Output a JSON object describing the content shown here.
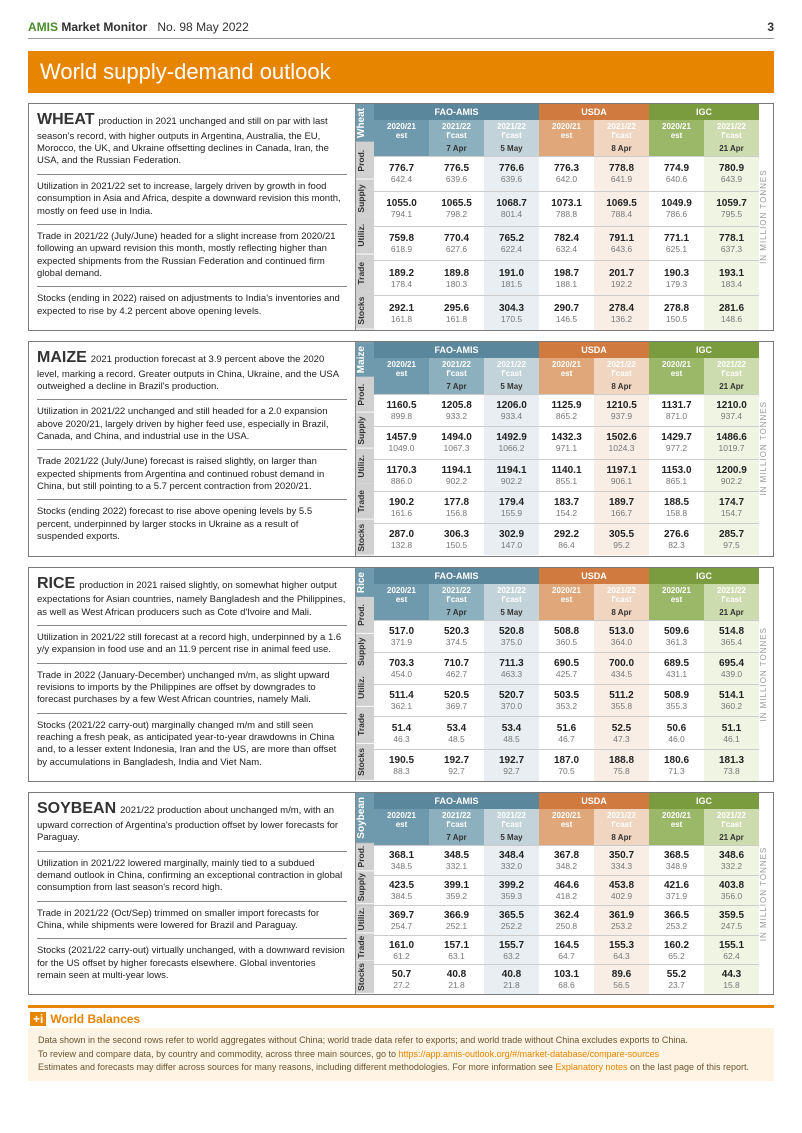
{
  "header": {
    "brand": "AMIS",
    "title": "Market Monitor",
    "issue": "No. 98 May 2022",
    "page": "3"
  },
  "band_title": "World supply-demand outlook",
  "unit_label": "IN MILLION TONNES",
  "sources": [
    {
      "name": "FAO-AMIS",
      "color": "#5b879d",
      "cols": [
        {
          "label": "2020/21 est",
          "sub": "",
          "bg": "#6f99ad"
        },
        {
          "label": "2021/22 f'cast",
          "sub": "7 Apr",
          "bg": "#8db0bf"
        },
        {
          "label": "2021/22 f'cast",
          "sub": "5 May",
          "bg": "#c2d3da"
        }
      ]
    },
    {
      "name": "USDA",
      "color": "#d07a3f",
      "cols": [
        {
          "label": "2020/21 est",
          "sub": "",
          "bg": "#e0a87a"
        },
        {
          "label": "2021/22 f'cast",
          "sub": "8 Apr",
          "bg": "#f0d6c0"
        }
      ]
    },
    {
      "name": "IGC",
      "color": "#7a9c3e",
      "cols": [
        {
          "label": "2020/21 est",
          "sub": "",
          "bg": "#9ab867"
        },
        {
          "label": "2021/22 f'cast",
          "sub": "21 Apr",
          "bg": "#cddcae"
        }
      ]
    }
  ],
  "row_categories": [
    "Prod.",
    "Supply",
    "Utiliz.",
    "Trade",
    "Stocks"
  ],
  "vtab_name_bg": {
    "wheat": "#8aa9b8",
    "maize": "#8aa9b8",
    "rice": "#8aa9b8",
    "soybean": "#8aa9b8"
  },
  "vtab_cat_bg": "#d0d0d0",
  "commodities": [
    {
      "key": "wheat",
      "name": "Wheat",
      "title": "WHEAT",
      "paras": [
        "production in 2021 unchanged and still on par with last season's record, with higher outputs in Argentina, Australia, the EU, Morocco, the UK, and Ukraine offsetting declines in Canada, Iran, the USA, and the Russian Federation.",
        "Utilization in 2021/22 set to increase, largely driven by growth in food consumption in Asia and Africa, despite a downward revision this month, mostly on feed use in India.",
        "Trade in 2021/22 (July/June) headed for a slight increase from 2020/21 following an upward revision this month, mostly reflecting higher than expected shipments from the Russian Federation and continued firm global demand.",
        "Stocks (ending in 2022) raised on adjustments to India's inventories and expected to rise by 4.2 percent above opening levels."
      ],
      "rows": [
        [
          [
            "776.7",
            "642.4"
          ],
          [
            "776.5",
            "639.6"
          ],
          [
            "776.6",
            "639.6"
          ],
          [
            "776.3",
            "642.0"
          ],
          [
            "778.8",
            "641.9"
          ],
          [
            "774.9",
            "640.6"
          ],
          [
            "780.9",
            "643.9"
          ]
        ],
        [
          [
            "1055.0",
            "794.1"
          ],
          [
            "1065.5",
            "798.2"
          ],
          [
            "1068.7",
            "801.4"
          ],
          [
            "1073.1",
            "788.8"
          ],
          [
            "1069.5",
            "788.4"
          ],
          [
            "1049.9",
            "786.6"
          ],
          [
            "1059.7",
            "795.5"
          ]
        ],
        [
          [
            "759.8",
            "618.9"
          ],
          [
            "770.4",
            "627.6"
          ],
          [
            "765.2",
            "622.4"
          ],
          [
            "782.4",
            "632.4"
          ],
          [
            "791.1",
            "643.6"
          ],
          [
            "771.1",
            "625.1"
          ],
          [
            "778.1",
            "637.3"
          ]
        ],
        [
          [
            "189.2",
            "178.4"
          ],
          [
            "189.8",
            "180.3"
          ],
          [
            "191.0",
            "181.5"
          ],
          [
            "198.7",
            "188.1"
          ],
          [
            "201.7",
            "192.2"
          ],
          [
            "190.3",
            "179.3"
          ],
          [
            "193.1",
            "183.4"
          ]
        ],
        [
          [
            "292.1",
            "161.8"
          ],
          [
            "295.6",
            "161.8"
          ],
          [
            "304.3",
            "170.5"
          ],
          [
            "290.7",
            "146.5"
          ],
          [
            "278.4",
            "136.2"
          ],
          [
            "278.8",
            "150.5"
          ],
          [
            "281.6",
            "148.6"
          ]
        ]
      ]
    },
    {
      "key": "maize",
      "name": "Maize",
      "title": "MAIZE",
      "paras": [
        "2021 production forecast at 3.9 percent above the 2020 level, marking a record. Greater outputs in China, Ukraine, and the USA outweighed a decline in Brazil's production.",
        "Utilization in 2021/22 unchanged and still headed for a 2.0 expansion above 2020/21, largely driven by higher feed use, especially in Brazil, Canada, and China, and industrial use in the USA.",
        "Trade 2021/22 (July/June) forecast is raised slightly, on larger than expected shipments from Argentina and continued robust demand in China, but still pointing to a 5.7 percent contraction from 2020/21.",
        "Stocks (ending 2022) forecast to rise above opening levels by 5.5 percent, underpinned by larger stocks in Ukraine as a result of suspended exports."
      ],
      "rows": [
        [
          [
            "1160.5",
            "899.8"
          ],
          [
            "1205.8",
            "933.2"
          ],
          [
            "1206.0",
            "933.4"
          ],
          [
            "1125.9",
            "865.2"
          ],
          [
            "1210.5",
            "937.9"
          ],
          [
            "1131.7",
            "871.0"
          ],
          [
            "1210.0",
            "937.4"
          ]
        ],
        [
          [
            "1457.9",
            "1049.0"
          ],
          [
            "1494.0",
            "1067.3"
          ],
          [
            "1492.9",
            "1066.2"
          ],
          [
            "1432.3",
            "971.1"
          ],
          [
            "1502.6",
            "1024.3"
          ],
          [
            "1429.7",
            "977.2"
          ],
          [
            "1486.6",
            "1019.7"
          ]
        ],
        [
          [
            "1170.3",
            "886.0"
          ],
          [
            "1194.1",
            "902.2"
          ],
          [
            "1194.1",
            "902.2"
          ],
          [
            "1140.1",
            "855.1"
          ],
          [
            "1197.1",
            "906.1"
          ],
          [
            "1153.0",
            "865.1"
          ],
          [
            "1200.9",
            "902.2"
          ]
        ],
        [
          [
            "190.2",
            "161.6"
          ],
          [
            "177.8",
            "156.8"
          ],
          [
            "179.4",
            "155.9"
          ],
          [
            "183.7",
            "154.2"
          ],
          [
            "189.7",
            "166.7"
          ],
          [
            "188.5",
            "158.8"
          ],
          [
            "174.7",
            "154.7"
          ]
        ],
        [
          [
            "287.0",
            "132.8"
          ],
          [
            "306.3",
            "150.5"
          ],
          [
            "302.9",
            "147.0"
          ],
          [
            "292.2",
            "86.4"
          ],
          [
            "305.5",
            "95.2"
          ],
          [
            "276.6",
            "82.3"
          ],
          [
            "285.7",
            "97.5"
          ]
        ]
      ]
    },
    {
      "key": "rice",
      "name": "Rice",
      "title": "RICE",
      "paras": [
        "production in 2021 raised slightly, on somewhat higher output expectations for Asian countries, namely Bangladesh and the Philippines, as well as West African producers such as Cote d'Ivoire and Mali.",
        "Utilization in 2021/22 still forecast at a record high, underpinned by a 1.6 y/y expansion in food use and an 11.9 percent rise in animal feed use.",
        "Trade in 2022 (January-December) unchanged m/m, as slight upward revisions to imports by the Philippines are offset by downgrades to forecast purchases by a few West African countries, namely Mali.",
        "Stocks (2021/22 carry-out) marginally changed m/m and still seen reaching a fresh peak, as anticipated year-to-year drawdowns in China and, to a lesser extent Indonesia, Iran and the US, are more than offset by accumulations in Bangladesh, India and Viet Nam."
      ],
      "rows": [
        [
          [
            "517.0",
            "371.9"
          ],
          [
            "520.3",
            "374.5"
          ],
          [
            "520.8",
            "375.0"
          ],
          [
            "508.8",
            "360.5"
          ],
          [
            "513.0",
            "364.0"
          ],
          [
            "509.6",
            "361.3"
          ],
          [
            "514.8",
            "365.4"
          ]
        ],
        [
          [
            "703.3",
            "454.0"
          ],
          [
            "710.7",
            "462.7"
          ],
          [
            "711.3",
            "463.3"
          ],
          [
            "690.5",
            "425.7"
          ],
          [
            "700.0",
            "434.5"
          ],
          [
            "689.5",
            "431.1"
          ],
          [
            "695.4",
            "439.0"
          ]
        ],
        [
          [
            "511.4",
            "362.1"
          ],
          [
            "520.5",
            "369.7"
          ],
          [
            "520.7",
            "370.0"
          ],
          [
            "503.5",
            "353.2"
          ],
          [
            "511.2",
            "355.8"
          ],
          [
            "508.9",
            "355.3"
          ],
          [
            "514.1",
            "360.2"
          ]
        ],
        [
          [
            "51.4",
            "46.3"
          ],
          [
            "53.4",
            "48.5"
          ],
          [
            "53.4",
            "48.5"
          ],
          [
            "51.6",
            "46.7"
          ],
          [
            "52.5",
            "47.3"
          ],
          [
            "50.6",
            "46.0"
          ],
          [
            "51.1",
            "46.1"
          ]
        ],
        [
          [
            "190.5",
            "88.3"
          ],
          [
            "192.7",
            "92.7"
          ],
          [
            "192.7",
            "92.7"
          ],
          [
            "187.0",
            "70.5"
          ],
          [
            "188.8",
            "75.8"
          ],
          [
            "180.6",
            "71.3"
          ],
          [
            "181.3",
            "73.8"
          ]
        ]
      ]
    },
    {
      "key": "soybean",
      "name": "Soybean",
      "title": "SOYBEAN",
      "paras": [
        "2021/22 production about unchanged m/m, with an upward correction of Argentina's production offset by lower forecasts for Paraguay.",
        "Utilization in 2021/22 lowered marginally, mainly tied to a subdued demand outlook in China, confirming an exceptional contraction in global consumption from last season's record high.",
        "Trade in 2021/22 (Oct/Sep) trimmed on smaller import forecasts for China, while shipments were lowered for Brazil and Paraguay.",
        "Stocks (2021/22 carry-out) virtually unchanged, with a downward revision for the US offset by higher forecasts elsewhere. Global inventories remain seen at multi-year lows."
      ],
      "rows": [
        [
          [
            "368.1",
            "348.5"
          ],
          [
            "348.5",
            "332.1"
          ],
          [
            "348.4",
            "332.0"
          ],
          [
            "367.8",
            "348.2"
          ],
          [
            "350.7",
            "334.3"
          ],
          [
            "368.5",
            "348.9"
          ],
          [
            "348.6",
            "332.2"
          ]
        ],
        [
          [
            "423.5",
            "384.5"
          ],
          [
            "399.1",
            "359.2"
          ],
          [
            "399.2",
            "359.3"
          ],
          [
            "464.6",
            "418.2"
          ],
          [
            "453.8",
            "402.9"
          ],
          [
            "421.6",
            "371.9"
          ],
          [
            "403.8",
            "356.0"
          ]
        ],
        [
          [
            "369.7",
            "254.7"
          ],
          [
            "366.9",
            "252.1"
          ],
          [
            "365.5",
            "252.2"
          ],
          [
            "362.4",
            "250.8"
          ],
          [
            "361.9",
            "253.2"
          ],
          [
            "366.5",
            "253.2"
          ],
          [
            "359.5",
            "247.5"
          ]
        ],
        [
          [
            "161.0",
            "61.2"
          ],
          [
            "157.1",
            "63.1"
          ],
          [
            "155.7",
            "63.2"
          ],
          [
            "164.5",
            "64.7"
          ],
          [
            "155.3",
            "64.3"
          ],
          [
            "160.2",
            "65.2"
          ],
          [
            "155.1",
            "62.4"
          ]
        ],
        [
          [
            "50.7",
            "27.2"
          ],
          [
            "40.8",
            "21.8"
          ],
          [
            "40.8",
            "21.8"
          ],
          [
            "103.1",
            "68.6"
          ],
          [
            "89.6",
            "56.5"
          ],
          [
            "55.2",
            "23.7"
          ],
          [
            "44.3",
            "15.8"
          ]
        ]
      ]
    }
  ],
  "footer": {
    "title": "World Balances",
    "lines": [
      "Data shown in the second rows refer to world aggregates without China; world trade data refer to exports; and world trade without China excludes exports to China.",
      "To review and compare data, by country and commodity, across three main sources, go to https://app.amis-outlook.org/#/market-database/compare-sources",
      "Estimates and forecasts may differ across sources for many reasons, including different methodologies. For more information see Explanatory notes on the last page of this report."
    ],
    "link_text": "https://app.amis-outlook.org/#/market-database/compare-sources",
    "link2_text": "Explanatory notes"
  }
}
